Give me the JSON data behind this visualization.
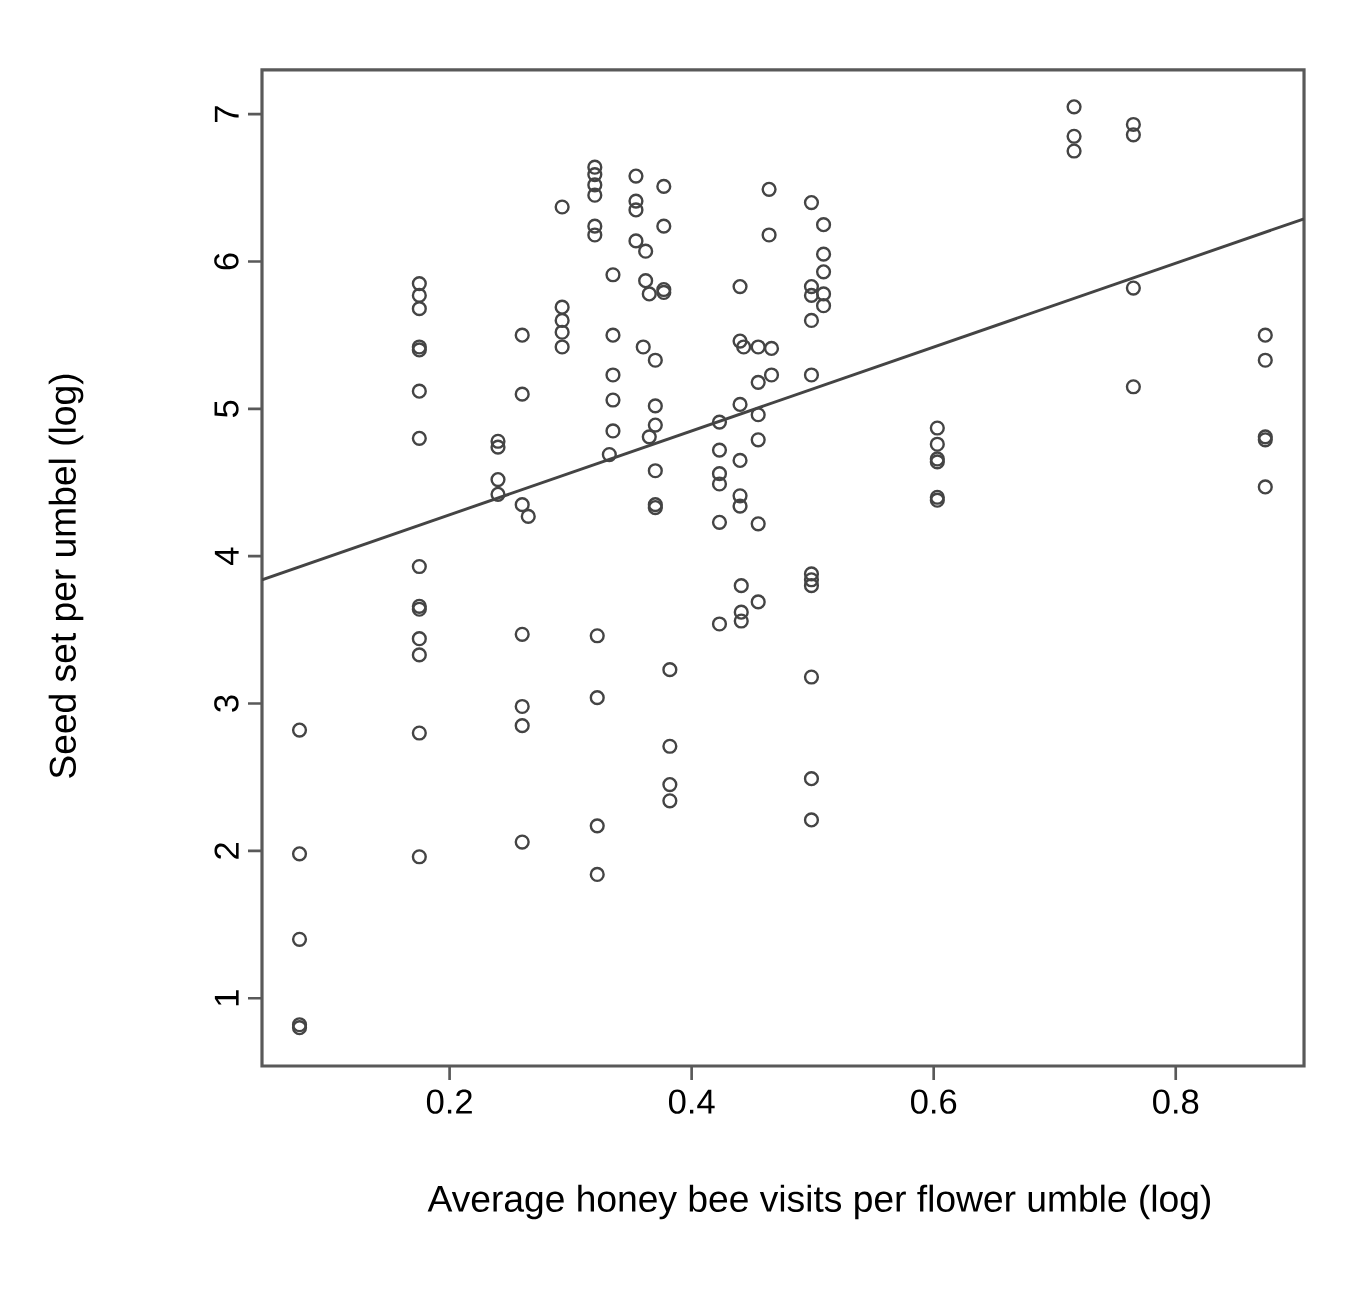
{
  "chart_data": {
    "type": "scatter",
    "xlabel": "Average honey bee visits per flower umble (log)",
    "ylabel": "Seed set per umbel (log)",
    "xlim": [
      0.045,
      0.906
    ],
    "ylim": [
      0.54,
      7.3
    ],
    "xticks": [
      0.2,
      0.4,
      0.6,
      0.8
    ],
    "yticks": [
      1,
      2,
      3,
      4,
      5,
      6,
      7
    ],
    "grid": false,
    "legend": false,
    "marker": "circle",
    "series": [
      {
        "color": "#444444",
        "x": [
          0.076,
          0.076,
          0.076,
          0.076,
          0.076,
          0.175,
          0.175,
          0.175,
          0.175,
          0.175,
          0.175,
          0.175,
          0.175,
          0.175,
          0.175,
          0.175,
          0.175,
          0.175,
          0.175,
          0.24,
          0.24,
          0.24,
          0.24,
          0.26,
          0.265,
          0.26,
          0.26,
          0.26,
          0.26,
          0.26,
          0.26,
          0.293,
          0.293,
          0.293,
          0.293,
          0.293,
          0.32,
          0.32,
          0.32,
          0.32,
          0.32,
          0.32,
          0.322,
          0.322,
          0.322,
          0.322,
          0.354,
          0.354,
          0.354,
          0.354,
          0.362,
          0.377,
          0.377,
          0.335,
          0.362,
          0.365,
          0.377,
          0.377,
          0.335,
          0.36,
          0.37,
          0.335,
          0.335,
          0.37,
          0.37,
          0.335,
          0.365,
          0.332,
          0.37,
          0.37,
          0.37,
          0.382,
          0.382,
          0.382,
          0.382,
          0.464,
          0.464,
          0.44,
          0.44,
          0.443,
          0.455,
          0.466,
          0.466,
          0.455,
          0.44,
          0.455,
          0.423,
          0.455,
          0.423,
          0.44,
          0.423,
          0.423,
          0.44,
          0.44,
          0.423,
          0.455,
          0.441,
          0.455,
          0.441,
          0.441,
          0.423,
          0.499,
          0.509,
          0.509,
          0.509,
          0.499,
          0.499,
          0.509,
          0.509,
          0.499,
          0.499,
          0.499,
          0.499,
          0.499,
          0.499,
          0.499,
          0.499,
          0.603,
          0.603,
          0.603,
          0.603,
          0.603,
          0.603,
          0.716,
          0.716,
          0.716,
          0.765,
          0.765,
          0.765,
          0.765,
          0.874,
          0.874,
          0.874,
          0.874,
          0.874
        ],
        "values": [
          2.82,
          1.98,
          1.4,
          0.82,
          0.8,
          5.85,
          5.77,
          5.68,
          5.42,
          5.4,
          5.12,
          4.8,
          3.93,
          3.66,
          3.64,
          3.44,
          3.33,
          2.8,
          1.96,
          4.78,
          4.74,
          4.52,
          4.42,
          4.35,
          4.27,
          5.5,
          5.1,
          3.47,
          2.98,
          2.85,
          2.06,
          6.37,
          5.69,
          5.6,
          5.52,
          5.42,
          6.64,
          6.59,
          6.52,
          6.45,
          6.24,
          6.18,
          3.46,
          3.04,
          2.17,
          1.84,
          6.58,
          6.41,
          6.35,
          6.14,
          6.07,
          6.51,
          6.24,
          5.91,
          5.87,
          5.78,
          5.81,
          5.79,
          5.5,
          5.42,
          5.33,
          5.23,
          5.06,
          5.02,
          4.89,
          4.85,
          4.81,
          4.69,
          4.58,
          4.35,
          4.33,
          3.23,
          2.71,
          2.45,
          2.34,
          6.49,
          6.18,
          5.83,
          5.46,
          5.42,
          5.42,
          5.41,
          5.23,
          5.18,
          5.03,
          4.96,
          4.91,
          4.79,
          4.72,
          4.65,
          4.56,
          4.49,
          4.41,
          4.34,
          4.23,
          4.22,
          3.8,
          3.69,
          3.62,
          3.56,
          3.54,
          6.4,
          6.25,
          6.05,
          5.93,
          5.83,
          5.77,
          5.78,
          5.7,
          5.6,
          5.23,
          3.88,
          3.84,
          3.8,
          3.18,
          2.49,
          2.21,
          4.87,
          4.76,
          4.66,
          4.64,
          4.4,
          4.38,
          7.05,
          6.85,
          6.75,
          6.93,
          6.86,
          5.82,
          5.15,
          5.5,
          5.33,
          4.81,
          4.79,
          4.47
        ]
      },
      {
        "type": "line",
        "color": "#444444",
        "marker": "none",
        "x": [
          0.045,
          0.906
        ],
        "values": [
          3.84,
          6.29
        ]
      }
    ]
  }
}
